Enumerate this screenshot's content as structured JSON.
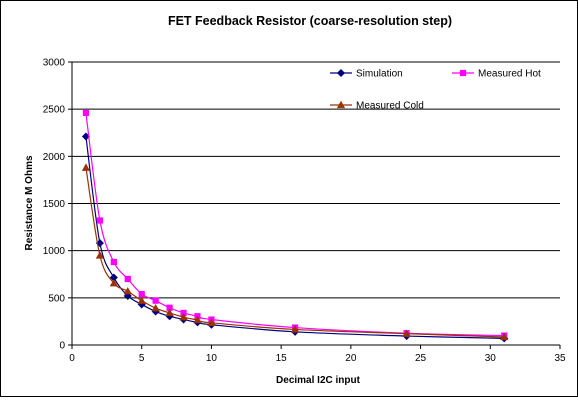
{
  "chart_data": {
    "type": "line",
    "title": "FET Feedback Resistor (coarse-resolution step)",
    "xlabel": "Decimal I2C input",
    "ylabel": "Resistance M Ohms",
    "xlim": [
      0,
      35
    ],
    "ylim": [
      0,
      3000
    ],
    "xticks": [
      0,
      5,
      10,
      15,
      20,
      25,
      30,
      35
    ],
    "yticks": [
      0,
      500,
      1000,
      1500,
      2000,
      2500,
      3000
    ],
    "grid": "horizontal",
    "legend_position": "top-right",
    "series": [
      {
        "name": "Simulation",
        "color": "#000080",
        "marker": "diamond",
        "x": [
          1,
          2,
          3,
          4,
          5,
          6,
          7,
          8,
          9,
          10,
          16,
          24,
          31
        ],
        "y": [
          2210,
          1080,
          715,
          520,
          430,
          355,
          305,
          270,
          240,
          215,
          140,
          95,
          70
        ]
      },
      {
        "name": "Measured Hot",
        "color": "#ff00ff",
        "marker": "square",
        "x": [
          1,
          2,
          3,
          4,
          5,
          6,
          7,
          8,
          9,
          10,
          16,
          24,
          31
        ],
        "y": [
          2460,
          1320,
          880,
          700,
          540,
          470,
          395,
          340,
          305,
          270,
          185,
          125,
          100
        ]
      },
      {
        "name": "Measured Cold",
        "color": "#993300",
        "marker": "triangle",
        "x": [
          1,
          2,
          3,
          4,
          5,
          6,
          7,
          8,
          9,
          10,
          16,
          24,
          31
        ],
        "y": [
          1880,
          950,
          655,
          570,
          470,
          390,
          340,
          295,
          265,
          235,
          165,
          120,
          85
        ]
      }
    ]
  }
}
